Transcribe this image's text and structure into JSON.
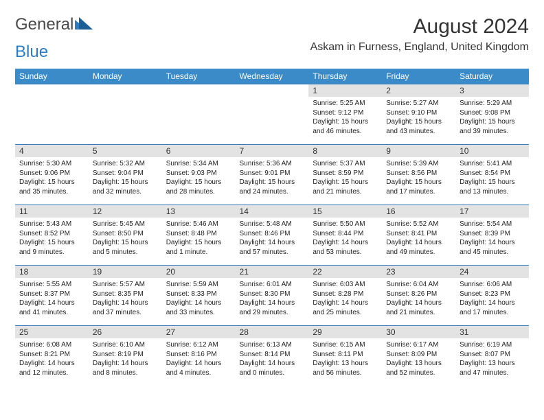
{
  "logo": {
    "text1": "General",
    "text2": "Blue"
  },
  "title": "August 2024",
  "location": "Askam in Furness, England, United Kingdom",
  "colors": {
    "header_bg": "#3b8bc9",
    "header_text": "#ffffff",
    "daynum_bg": "#e3e3e3",
    "row_border": "#2d7dc0",
    "text": "#222222",
    "logo_gray": "#4a4a4a",
    "logo_blue": "#2d7dc0"
  },
  "weekdays": [
    "Sunday",
    "Monday",
    "Tuesday",
    "Wednesday",
    "Thursday",
    "Friday",
    "Saturday"
  ],
  "first_weekday_index": 4,
  "days": [
    {
      "n": 1,
      "sunrise": "5:25 AM",
      "sunset": "9:12 PM",
      "daylight": "15 hours and 46 minutes."
    },
    {
      "n": 2,
      "sunrise": "5:27 AM",
      "sunset": "9:10 PM",
      "daylight": "15 hours and 43 minutes."
    },
    {
      "n": 3,
      "sunrise": "5:29 AM",
      "sunset": "9:08 PM",
      "daylight": "15 hours and 39 minutes."
    },
    {
      "n": 4,
      "sunrise": "5:30 AM",
      "sunset": "9:06 PM",
      "daylight": "15 hours and 35 minutes."
    },
    {
      "n": 5,
      "sunrise": "5:32 AM",
      "sunset": "9:04 PM",
      "daylight": "15 hours and 32 minutes."
    },
    {
      "n": 6,
      "sunrise": "5:34 AM",
      "sunset": "9:03 PM",
      "daylight": "15 hours and 28 minutes."
    },
    {
      "n": 7,
      "sunrise": "5:36 AM",
      "sunset": "9:01 PM",
      "daylight": "15 hours and 24 minutes."
    },
    {
      "n": 8,
      "sunrise": "5:37 AM",
      "sunset": "8:59 PM",
      "daylight": "15 hours and 21 minutes."
    },
    {
      "n": 9,
      "sunrise": "5:39 AM",
      "sunset": "8:56 PM",
      "daylight": "15 hours and 17 minutes."
    },
    {
      "n": 10,
      "sunrise": "5:41 AM",
      "sunset": "8:54 PM",
      "daylight": "15 hours and 13 minutes."
    },
    {
      "n": 11,
      "sunrise": "5:43 AM",
      "sunset": "8:52 PM",
      "daylight": "15 hours and 9 minutes."
    },
    {
      "n": 12,
      "sunrise": "5:45 AM",
      "sunset": "8:50 PM",
      "daylight": "15 hours and 5 minutes."
    },
    {
      "n": 13,
      "sunrise": "5:46 AM",
      "sunset": "8:48 PM",
      "daylight": "15 hours and 1 minute."
    },
    {
      "n": 14,
      "sunrise": "5:48 AM",
      "sunset": "8:46 PM",
      "daylight": "14 hours and 57 minutes."
    },
    {
      "n": 15,
      "sunrise": "5:50 AM",
      "sunset": "8:44 PM",
      "daylight": "14 hours and 53 minutes."
    },
    {
      "n": 16,
      "sunrise": "5:52 AM",
      "sunset": "8:41 PM",
      "daylight": "14 hours and 49 minutes."
    },
    {
      "n": 17,
      "sunrise": "5:54 AM",
      "sunset": "8:39 PM",
      "daylight": "14 hours and 45 minutes."
    },
    {
      "n": 18,
      "sunrise": "5:55 AM",
      "sunset": "8:37 PM",
      "daylight": "14 hours and 41 minutes."
    },
    {
      "n": 19,
      "sunrise": "5:57 AM",
      "sunset": "8:35 PM",
      "daylight": "14 hours and 37 minutes."
    },
    {
      "n": 20,
      "sunrise": "5:59 AM",
      "sunset": "8:33 PM",
      "daylight": "14 hours and 33 minutes."
    },
    {
      "n": 21,
      "sunrise": "6:01 AM",
      "sunset": "8:30 PM",
      "daylight": "14 hours and 29 minutes."
    },
    {
      "n": 22,
      "sunrise": "6:03 AM",
      "sunset": "8:28 PM",
      "daylight": "14 hours and 25 minutes."
    },
    {
      "n": 23,
      "sunrise": "6:04 AM",
      "sunset": "8:26 PM",
      "daylight": "14 hours and 21 minutes."
    },
    {
      "n": 24,
      "sunrise": "6:06 AM",
      "sunset": "8:23 PM",
      "daylight": "14 hours and 17 minutes."
    },
    {
      "n": 25,
      "sunrise": "6:08 AM",
      "sunset": "8:21 PM",
      "daylight": "14 hours and 12 minutes."
    },
    {
      "n": 26,
      "sunrise": "6:10 AM",
      "sunset": "8:19 PM",
      "daylight": "14 hours and 8 minutes."
    },
    {
      "n": 27,
      "sunrise": "6:12 AM",
      "sunset": "8:16 PM",
      "daylight": "14 hours and 4 minutes."
    },
    {
      "n": 28,
      "sunrise": "6:13 AM",
      "sunset": "8:14 PM",
      "daylight": "14 hours and 0 minutes."
    },
    {
      "n": 29,
      "sunrise": "6:15 AM",
      "sunset": "8:11 PM",
      "daylight": "13 hours and 56 minutes."
    },
    {
      "n": 30,
      "sunrise": "6:17 AM",
      "sunset": "8:09 PM",
      "daylight": "13 hours and 52 minutes."
    },
    {
      "n": 31,
      "sunrise": "6:19 AM",
      "sunset": "8:07 PM",
      "daylight": "13 hours and 47 minutes."
    }
  ],
  "labels": {
    "sunrise": "Sunrise:",
    "sunset": "Sunset:",
    "daylight": "Daylight:"
  }
}
